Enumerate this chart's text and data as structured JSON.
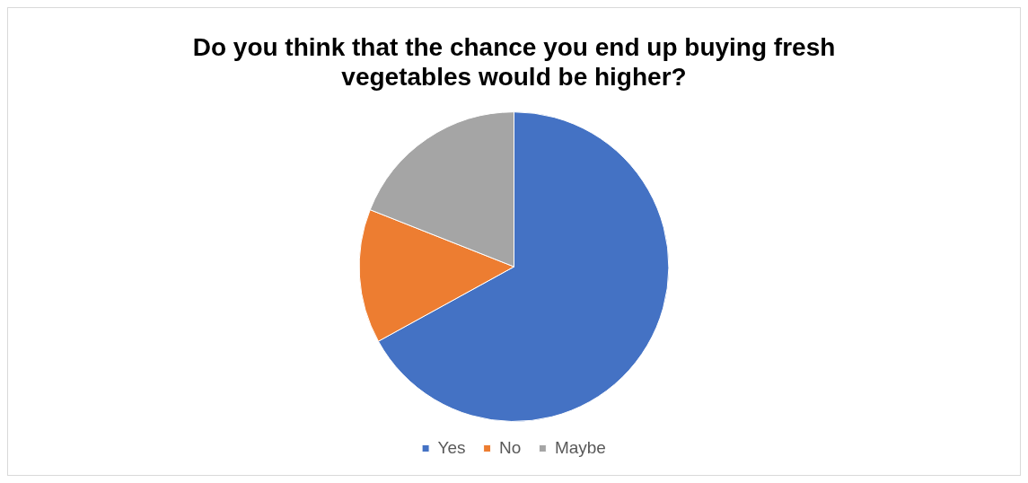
{
  "chart_data": {
    "type": "pie",
    "title": "Do you think that the chance you end up buying fresh vegetables would be higher?",
    "categories": [
      "Yes",
      "No",
      "Maybe"
    ],
    "values": [
      67,
      14,
      19
    ],
    "colors": [
      "#4472c4",
      "#ed7d31",
      "#a5a5a5"
    ],
    "legend": "bottom"
  }
}
